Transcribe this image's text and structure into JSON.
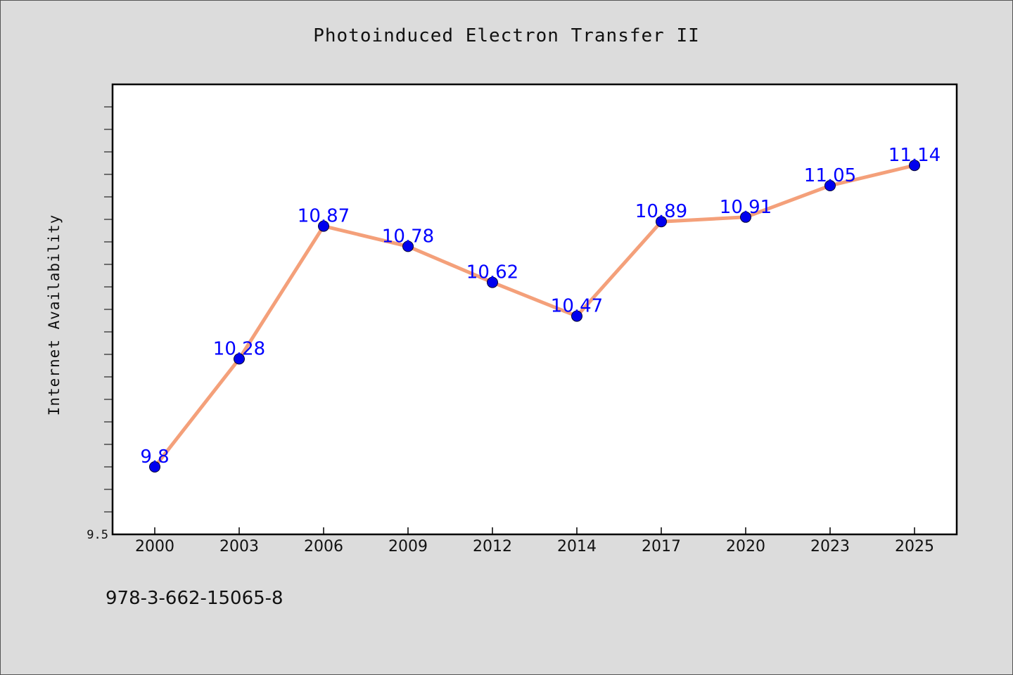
{
  "chart_data": {
    "type": "line",
    "title": "Photoinduced Electron Transfer II",
    "xlabel": "",
    "ylabel": "Internet Availability",
    "categories": [
      "2000",
      "2003",
      "2006",
      "2009",
      "2012",
      "2014",
      "2017",
      "2020",
      "2023",
      "2025"
    ],
    "series": [
      {
        "values": [
          9.8,
          10.28,
          10.87,
          10.78,
          10.62,
          10.47,
          10.89,
          10.91,
          11.05,
          11.14
        ]
      }
    ],
    "data_labels": [
      "9.8",
      "10.28",
      "10.87",
      "10.78",
      "10.62",
      "10.47",
      "10.89",
      "10.91",
      "11.05",
      "11.14"
    ],
    "y_tick_labels": [
      "9.5"
    ],
    "ylim": [
      9.5,
      11.5
    ],
    "grid": false,
    "line_color": "#f4a07a",
    "marker_color": "#0000ee",
    "label_color": "#0000ff"
  },
  "footer": {
    "isbn": "978-3-662-15065-8"
  }
}
